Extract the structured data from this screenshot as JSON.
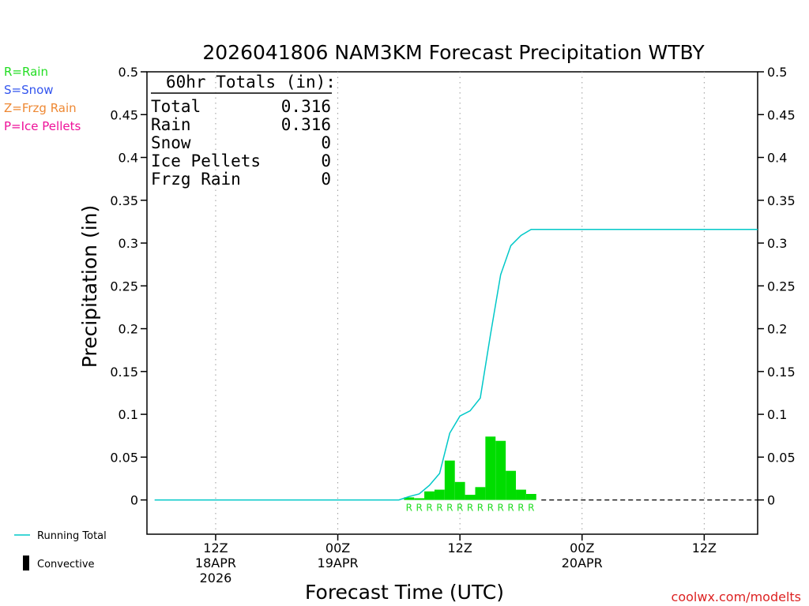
{
  "chart_data": {
    "type": "bar",
    "title": "2026041806 NAM3KM Forecast Precipitation WTBY",
    "xlabel": "Forecast Time (UTC)",
    "ylabel": "Precipitation (in)",
    "ylim": [
      -0.04,
      0.5
    ],
    "yticks": [
      0,
      0.05,
      0.1,
      0.15,
      0.2,
      0.25,
      0.3,
      0.35,
      0.4,
      0.45,
      0.5
    ],
    "ytick_labels": [
      "0",
      "0.05",
      "0.1",
      "0.15",
      "0.2",
      "0.25",
      "0.3",
      "0.35",
      "0.4",
      "0.45",
      "0.5"
    ],
    "x_unit": "hours since 2026041806",
    "xlim": [
      -0.75,
      59.25
    ],
    "x_ticks": [
      {
        "hour": 6,
        "label": "12Z",
        "sub": "18APR",
        "sub2": "2026"
      },
      {
        "hour": 18,
        "label": "00Z",
        "sub": "19APR",
        "sub2": ""
      },
      {
        "hour": 30,
        "label": "12Z",
        "sub": "",
        "sub2": ""
      },
      {
        "hour": 42,
        "label": "00Z",
        "sub": "20APR",
        "sub2": ""
      },
      {
        "hour": 54,
        "label": "12Z",
        "sub": "",
        "sub2": ""
      }
    ],
    "grid": "vertical-dotted",
    "bar_hours": [
      25,
      26,
      27,
      28,
      29,
      30,
      31,
      32,
      33,
      34,
      35,
      36,
      37,
      38
    ],
    "bar_values": [
      0.003,
      0.002,
      0.01,
      0.012,
      0.046,
      0.021,
      0.006,
      0.015,
      0.074,
      0.069,
      0.034,
      0.012,
      0.007,
      0.0
    ],
    "precip_type_labels": [
      "R",
      "R",
      "R",
      "R",
      "R",
      "R",
      "R",
      "R",
      "R",
      "R",
      "R",
      "R",
      "R"
    ],
    "running_total": {
      "name": "Running Total",
      "x": [
        0,
        24,
        25,
        26,
        27,
        28,
        29,
        30,
        31,
        32,
        33,
        34,
        35,
        36,
        37,
        38,
        59.25
      ],
      "y": [
        0,
        0,
        0.004,
        0.007,
        0.017,
        0.031,
        0.078,
        0.098,
        0.104,
        0.119,
        0.193,
        0.263,
        0.297,
        0.309,
        0.316,
        0.316,
        0.316
      ]
    },
    "zero_line_dashed_from_hour": 38,
    "totals_box": {
      "title": "60hr Totals (in):",
      "rows": [
        {
          "label": "Total",
          "value": "0.316"
        },
        {
          "label": "Rain",
          "value": "0.316"
        },
        {
          "label": "Snow",
          "value": "0"
        },
        {
          "label": "Ice Pellets",
          "value": "0"
        },
        {
          "label": "Frzg Rain",
          "value": "0"
        }
      ]
    },
    "type_legend": [
      {
        "text": "R=Rain",
        "color": "#22dd22"
      },
      {
        "text": "S=Snow",
        "color": "#3355ee"
      },
      {
        "text": "Z=Frzg Rain",
        "color": "#ee8833"
      },
      {
        "text": "P=Ice Pellets",
        "color": "#ee1199"
      }
    ],
    "bottom_legend": [
      {
        "text": "Running Total",
        "kind": "line"
      },
      {
        "text": "Convective",
        "kind": "bar"
      }
    ],
    "colors": {
      "bar": "#00dd00",
      "running_total": "#00c8c8",
      "rain_label": "#22dd22",
      "grid": "#999999",
      "credit": "#dd2222"
    },
    "credit": "coolwx.com/modelts"
  }
}
